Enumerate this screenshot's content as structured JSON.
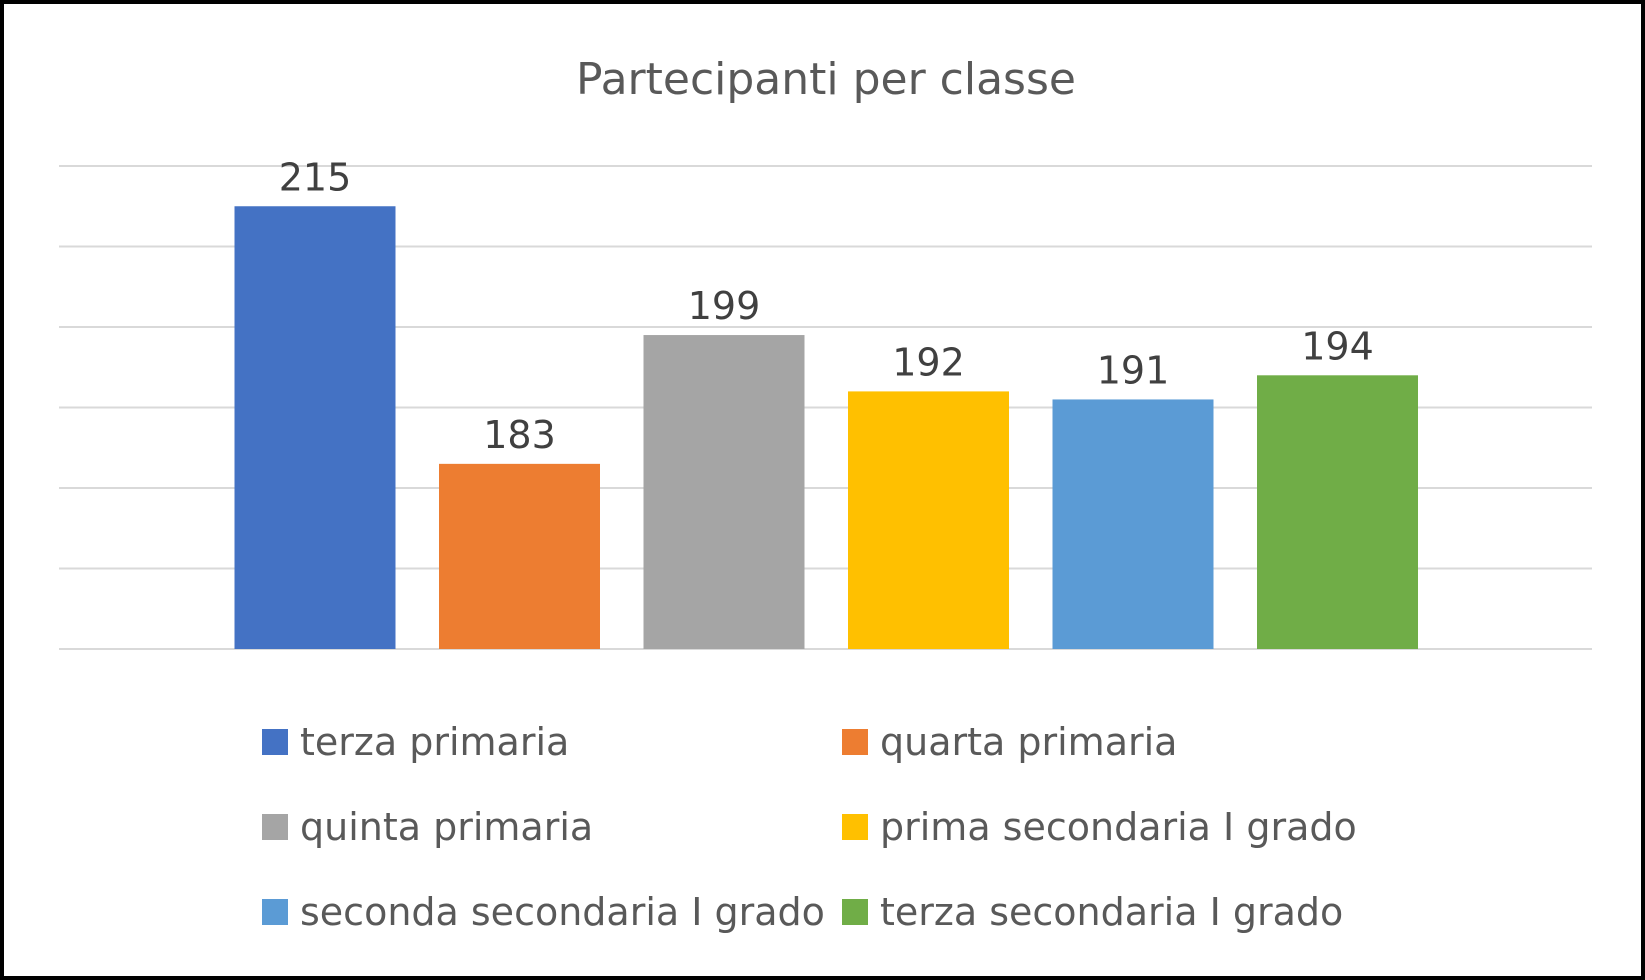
{
  "chart_data": {
    "type": "bar",
    "title": "Partecipanti per classe",
    "xlabel": "",
    "ylabel": "",
    "categories": [
      "terza primaria",
      "quarta primaria",
      "quinta primaria",
      "prima secondaria I grado",
      "seconda secondaria I grado",
      "terza secondaria I grado"
    ],
    "values": [
      215,
      183,
      199,
      192,
      191,
      194
    ],
    "colors": [
      "#4472C4",
      "#ED7D31",
      "#A5A5A5",
      "#FFC000",
      "#5B9BD5",
      "#70AD47"
    ],
    "ylim": [
      160,
      220
    ],
    "grid": true,
    "gridline_color": "#d9d9d9",
    "y_axis_labels_shown": false,
    "legend_position": "bottom",
    "legend_columns": 2
  }
}
